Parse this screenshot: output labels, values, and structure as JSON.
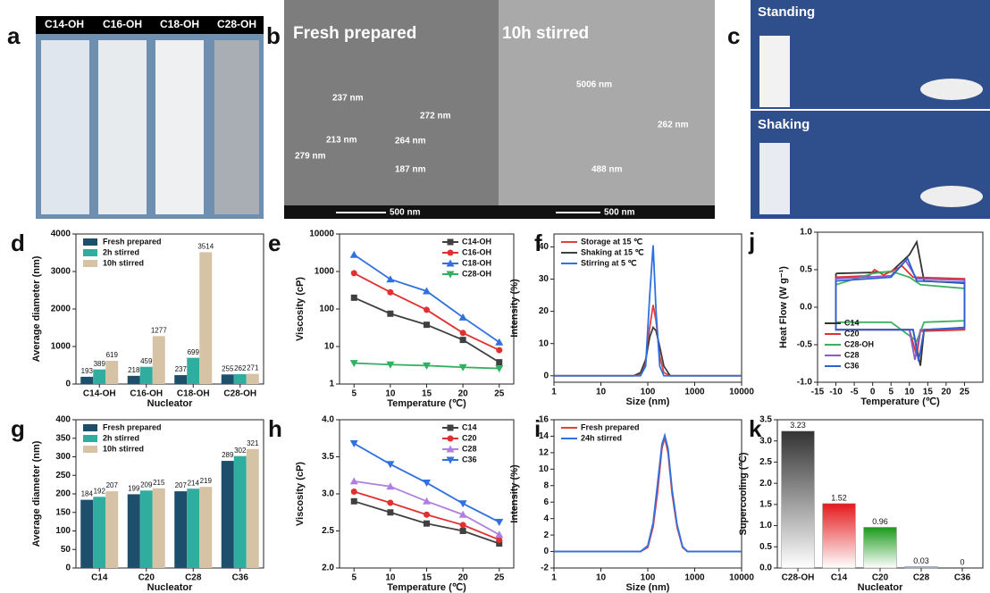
{
  "photos": {
    "a": {
      "panel": "a",
      "labels": [
        "C14-OH",
        "C16-OH",
        "C18-OH",
        "C28-OH"
      ]
    },
    "b": {
      "panel": "b",
      "left_title": "Fresh prepared",
      "right_title": "10h stirred",
      "annotations": [
        "237 nm",
        "272 nm",
        "213 nm",
        "264 nm",
        "279 nm",
        "187 nm",
        "5006 nm",
        "262 nm",
        "488 nm"
      ],
      "scale_bars": [
        "500 nm",
        "500 nm"
      ]
    },
    "c": {
      "panel": "c",
      "labels": [
        "Standing",
        "Shaking"
      ]
    }
  },
  "chart_data": [
    {
      "type": "bar",
      "panel": "d",
      "ylabel": "Average diameter (nm)",
      "xlabel": "Nucleator",
      "categories": [
        "C14-OH",
        "C16-OH",
        "C18-OH",
        "C28-OH"
      ],
      "series": [
        {
          "name": "Fresh prepared",
          "color": "#1d4e6b",
          "values": [
            193,
            218,
            237,
            255
          ]
        },
        {
          "name": "2h stirred",
          "color": "#2fae9f",
          "values": [
            389,
            459,
            699,
            262
          ]
        },
        {
          "name": "10h stirred",
          "color": "#d6c3a6",
          "values": [
            619,
            1277,
            3514,
            271
          ]
        }
      ],
      "ylim": [
        0,
        4000
      ],
      "yticks": [
        0,
        1000,
        2000,
        3000,
        4000
      ],
      "legend": "upper left",
      "show_values": true
    },
    {
      "type": "line",
      "panel": "e",
      "ylabel": "Viscosity (cP)",
      "xlabel": "Temperature (℃)",
      "x": [
        5,
        10,
        15,
        20,
        25
      ],
      "series": [
        {
          "name": "C14-OH",
          "color": "#404040",
          "marker": "square",
          "values": [
            200,
            75,
            38,
            15,
            3.8
          ]
        },
        {
          "name": "C16-OH",
          "color": "#e03030",
          "marker": "circle",
          "values": [
            900,
            280,
            95,
            23,
            8
          ]
        },
        {
          "name": "C18-OH",
          "color": "#3070e0",
          "marker": "triangle-up",
          "values": [
            2800,
            620,
            300,
            60,
            13
          ]
        },
        {
          "name": "C28-OH",
          "color": "#30b060",
          "marker": "triangle-down",
          "values": [
            3.6,
            3.3,
            3.1,
            2.8,
            2.6
          ]
        }
      ],
      "xlim": [
        3,
        27
      ],
      "xticks": [
        5,
        10,
        15,
        20,
        25
      ],
      "ylim": [
        1,
        10000
      ],
      "yticks": [
        1,
        10,
        100,
        1000,
        10000
      ],
      "ylog": true,
      "legend": "upper right"
    },
    {
      "type": "line",
      "panel": "f",
      "ylabel": "Intensity (%)",
      "xlabel": "Size (nm)",
      "x": [
        1,
        50,
        70,
        90,
        110,
        130,
        150,
        180,
        220,
        300,
        10000
      ],
      "series": [
        {
          "name": "Storage at 15 ℃",
          "color": "#e04040",
          "values": [
            0,
            0,
            0.5,
            4,
            15,
            22,
            17,
            6,
            1,
            0,
            0
          ]
        },
        {
          "name": "Shaking at 15 ℃",
          "color": "#404040",
          "values": [
            0,
            0,
            1,
            5,
            12,
            15,
            14,
            9,
            3,
            0,
            0
          ]
        },
        {
          "name": "Stirring at 5 ℃",
          "color": "#3070e0",
          "values": [
            0,
            0,
            0,
            3,
            25,
            40.5,
            20,
            3,
            0,
            0,
            0
          ]
        }
      ],
      "xlim": [
        1,
        10000
      ],
      "xticks": [
        1,
        10,
        100,
        1000,
        10000
      ],
      "xlog": true,
      "ylim": [
        -2,
        44
      ],
      "yticks": [
        0,
        10,
        20,
        30,
        40
      ],
      "legend": "upper left"
    },
    {
      "type": "line",
      "panel": "j",
      "ylabel": "Heat Flow (W g⁻¹)",
      "xlabel": "Temperature (℃)",
      "series": [
        {
          "name": "C14",
          "color": "#333333",
          "x": [
            -10,
            5,
            10,
            12,
            14,
            25,
            25,
            14,
            13,
            11,
            -10,
            -10
          ],
          "values": [
            0.45,
            0.47,
            0.7,
            0.87,
            0.35,
            0.32,
            -0.28,
            -0.3,
            -0.78,
            -0.3,
            -0.3,
            0.45
          ]
        },
        {
          "name": "C20",
          "color": "#e03030",
          "x": [
            -10,
            -1,
            0.5,
            3,
            8,
            11,
            25,
            25,
            13,
            12,
            10,
            -10,
            -10
          ],
          "values": [
            0.4,
            0.42,
            0.5,
            0.43,
            0.55,
            0.4,
            0.38,
            -0.3,
            -0.32,
            -0.65,
            -0.3,
            -0.3,
            0.4
          ]
        },
        {
          "name": "C28-OH",
          "color": "#3cb060",
          "x": [
            -10,
            0,
            5,
            10,
            13,
            25,
            25,
            14,
            12,
            5,
            -10,
            -10
          ],
          "values": [
            0.3,
            0.45,
            0.48,
            0.4,
            0.3,
            0.25,
            -0.18,
            -0.2,
            -0.45,
            -0.2,
            -0.2,
            0.3
          ]
        },
        {
          "name": "C28",
          "color": "#8a5cc8",
          "x": [
            -10,
            5,
            9,
            12,
            25,
            25,
            13,
            11.5,
            10,
            -10,
            -10
          ],
          "values": [
            0.38,
            0.42,
            0.62,
            0.38,
            0.36,
            -0.28,
            -0.3,
            -0.7,
            -0.3,
            -0.3,
            0.38
          ]
        },
        {
          "name": "C36",
          "color": "#3060d0",
          "x": [
            -10,
            5,
            9.5,
            12,
            25,
            25,
            14,
            12.5,
            11,
            -10,
            -10
          ],
          "values": [
            0.35,
            0.4,
            0.65,
            0.35,
            0.33,
            -0.27,
            -0.3,
            -0.72,
            -0.3,
            -0.3,
            0.35
          ]
        }
      ],
      "xlim": [
        -15,
        30
      ],
      "xticks": [
        -15,
        -10,
        -5,
        0,
        5,
        10,
        15,
        20,
        25
      ],
      "ylim": [
        -1,
        1
      ],
      "yticks": [
        {
          "value": -1,
          "label": "-1.0"
        },
        -0.5,
        {
          "value": 0,
          "label": "0.0"
        },
        0.5,
        {
          "value": 1,
          "label": "1.0"
        }
      ],
      "legend": "lower left"
    },
    {
      "type": "bar",
      "panel": "g",
      "ylabel": "Average diameter (nm)",
      "xlabel": "Nucleator",
      "categories": [
        "C14",
        "C20",
        "C28",
        "C36"
      ],
      "series": [
        {
          "name": "Fresh prepared",
          "color": "#1d4e6b",
          "values": [
            184,
            199,
            207,
            289
          ]
        },
        {
          "name": "2h stirred",
          "color": "#2fae9f",
          "values": [
            192,
            209,
            214,
            302
          ]
        },
        {
          "name": "10h stirred",
          "color": "#d6c3a6",
          "values": [
            207,
            215,
            219,
            321
          ]
        }
      ],
      "ylim": [
        0,
        400
      ],
      "yticks": [
        0,
        50,
        100,
        150,
        200,
        250,
        300,
        350,
        400
      ],
      "legend": "upper left",
      "show_values": true
    },
    {
      "type": "line",
      "panel": "h",
      "ylabel": "Viscosity (cP)",
      "xlabel": "Temperature (℃)",
      "x": [
        5,
        10,
        15,
        20,
        25
      ],
      "series": [
        {
          "name": "C14",
          "color": "#404040",
          "marker": "square",
          "values": [
            2.9,
            2.75,
            2.6,
            2.5,
            2.33
          ]
        },
        {
          "name": "C20",
          "color": "#e03030",
          "marker": "circle",
          "values": [
            3.03,
            2.88,
            2.72,
            2.58,
            2.38
          ]
        },
        {
          "name": "C28",
          "color": "#b080e0",
          "marker": "triangle-up",
          "values": [
            3.17,
            3.1,
            2.9,
            2.72,
            2.45
          ]
        },
        {
          "name": "C36",
          "color": "#3070e0",
          "marker": "triangle-down",
          "values": [
            3.68,
            3.4,
            3.15,
            2.87,
            2.62
          ]
        }
      ],
      "xlim": [
        3,
        27
      ],
      "xticks": [
        5,
        10,
        15,
        20,
        25
      ],
      "ylim": [
        2,
        4
      ],
      "yticks": [
        {
          "value": 2,
          "label": "2.0"
        },
        2.5,
        {
          "value": 3,
          "label": "3.0"
        },
        3.5,
        {
          "value": 4,
          "label": "4.0"
        }
      ],
      "legend": "upper right"
    },
    {
      "type": "line",
      "panel": "i",
      "ylabel": "Intensity (%)",
      "xlabel": "Size (nm)",
      "x": [
        1,
        70,
        100,
        130,
        160,
        200,
        230,
        270,
        330,
        420,
        550,
        700,
        10000
      ],
      "series": [
        {
          "name": "Fresh prepared",
          "color": "#e04040",
          "values": [
            0,
            0,
            0.5,
            3,
            7,
            12.5,
            13.8,
            12,
            7,
            3,
            0.5,
            0,
            0
          ]
        },
        {
          "name": "24h stirred",
          "color": "#3070e0",
          "values": [
            0,
            0,
            0.7,
            3.5,
            8,
            13,
            14.1,
            12.5,
            7.5,
            3.3,
            0.6,
            0,
            0
          ]
        }
      ],
      "xlim": [
        1,
        10000
      ],
      "xticks": [
        1,
        10,
        100,
        1000,
        10000
      ],
      "xlog": true,
      "ylim": [
        -2,
        16
      ],
      "yticks": [
        -2,
        0,
        2,
        4,
        6,
        8,
        10,
        12,
        14,
        16
      ],
      "legend": "upper left"
    },
    {
      "type": "bar",
      "panel": "k",
      "ylabel": "Supercooling (℃)",
      "xlabel": "Nucleator",
      "categories": [
        "C28-OH",
        "C14",
        "C20",
        "C28",
        "C36"
      ],
      "values": [
        3.23,
        1.52,
        0.96,
        0.03,
        0
      ],
      "colors": [
        "#333333",
        "#e41a1c",
        "#1a9a1a",
        "#2050c0",
        "#7a2080"
      ],
      "ylim": [
        0,
        3.5
      ],
      "yticks": [
        {
          "value": 0,
          "label": "0.0"
        },
        0.5,
        {
          "value": 1,
          "label": "1.0"
        },
        1.5,
        {
          "value": 2,
          "label": "2.0"
        },
        2.5,
        {
          "value": 3,
          "label": "3.0"
        },
        3.5
      ],
      "show_values": true
    }
  ]
}
